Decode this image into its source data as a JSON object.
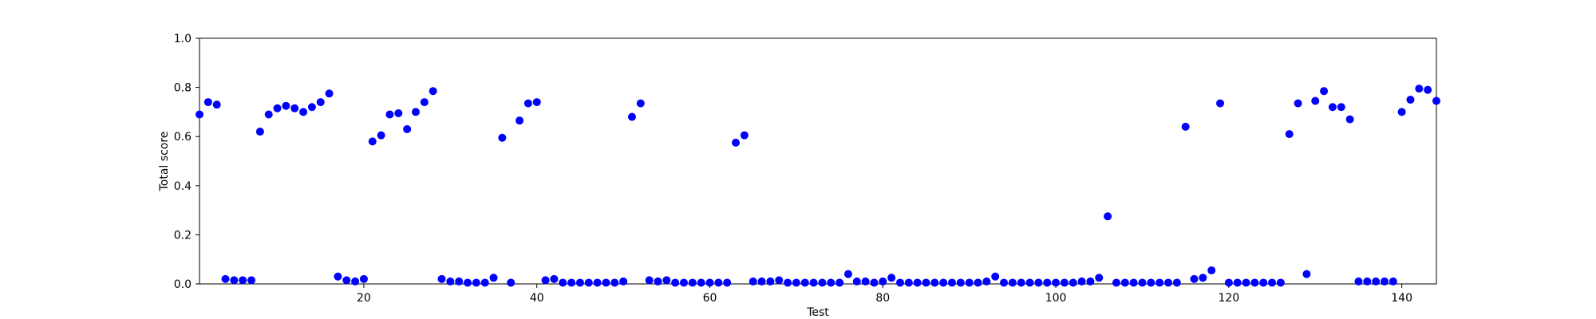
{
  "chart_data": {
    "type": "scatter",
    "title": "",
    "xlabel": "Test",
    "ylabel": "Total score",
    "xlim": [
      1,
      144
    ],
    "ylim": [
      0,
      1.0
    ],
    "xticks": [
      20,
      40,
      60,
      80,
      100,
      120,
      140
    ],
    "yticks": [
      0.0,
      0.2,
      0.4,
      0.6,
      0.8,
      1.0
    ],
    "xtick_labels": [
      "20",
      "40",
      "60",
      "80",
      "100",
      "120",
      "140"
    ],
    "ytick_labels": [
      "0.0",
      "0.2",
      "0.4",
      "0.6",
      "0.8",
      "1.0"
    ],
    "grid": false,
    "marker_color": "#0000ff",
    "series": [
      {
        "x": [
          1,
          2,
          3,
          4,
          5,
          6,
          7,
          8,
          9,
          10,
          11,
          12,
          13,
          14,
          15,
          16,
          17,
          18,
          19,
          20,
          21,
          22,
          23,
          24,
          25,
          26,
          27,
          28,
          29,
          30,
          31,
          32,
          33,
          34,
          35,
          36,
          37,
          38,
          39,
          40,
          41,
          42,
          43,
          44,
          45,
          46,
          47,
          48,
          49,
          50,
          51,
          52,
          53,
          54,
          55,
          56,
          57,
          58,
          59,
          60,
          61,
          62,
          63,
          64,
          65,
          66,
          67,
          68,
          69,
          70,
          71,
          72,
          73,
          74,
          75,
          76,
          77,
          78,
          79,
          80,
          81,
          82,
          83,
          84,
          85,
          86,
          87,
          88,
          89,
          90,
          91,
          92,
          93,
          94,
          95,
          96,
          97,
          98,
          99,
          100,
          101,
          102,
          103,
          104,
          105,
          106,
          107,
          108,
          109,
          110,
          111,
          112,
          113,
          114,
          115,
          116,
          117,
          118,
          119,
          120,
          121,
          122,
          123,
          124,
          125,
          126,
          127,
          128,
          129,
          130,
          131,
          132,
          133,
          134,
          135,
          136,
          137,
          138,
          139,
          140,
          141,
          142,
          143,
          144
        ],
        "y": [
          0.69,
          0.74,
          0.73,
          0.02,
          0.015,
          0.015,
          0.015,
          0.62,
          0.69,
          0.715,
          0.725,
          0.715,
          0.7,
          0.72,
          0.74,
          0.775,
          0.03,
          0.015,
          0.01,
          0.02,
          0.58,
          0.605,
          0.69,
          0.695,
          0.63,
          0.7,
          0.74,
          0.785,
          0.02,
          0.01,
          0.01,
          0.005,
          0.005,
          0.005,
          0.025,
          0.595,
          0.005,
          0.665,
          0.735,
          0.74,
          0.015,
          0.02,
          0.005,
          0.005,
          0.005,
          0.005,
          0.005,
          0.005,
          0.005,
          0.01,
          0.68,
          0.735,
          0.015,
          0.01,
          0.015,
          0.005,
          0.005,
          0.005,
          0.005,
          0.005,
          0.005,
          0.005,
          0.575,
          0.605,
          0.01,
          0.01,
          0.01,
          0.015,
          0.005,
          0.005,
          0.005,
          0.005,
          0.005,
          0.005,
          0.005,
          0.04,
          0.01,
          0.01,
          0.005,
          0.01,
          0.025,
          0.005,
          0.005,
          0.005,
          0.005,
          0.005,
          0.005,
          0.005,
          0.005,
          0.005,
          0.005,
          0.01,
          0.03,
          0.005,
          0.005,
          0.005,
          0.005,
          0.005,
          0.005,
          0.005,
          0.005,
          0.005,
          0.01,
          0.01,
          0.025,
          0.275,
          0.005,
          0.005,
          0.005,
          0.005,
          0.005,
          0.005,
          0.005,
          0.005,
          0.64,
          0.02,
          0.025,
          0.055,
          0.735,
          0.005,
          0.005,
          0.005,
          0.005,
          0.005,
          0.005,
          0.005,
          0.61,
          0.735,
          0.04,
          0.745,
          0.785,
          0.72,
          0.72,
          0.67,
          0.01,
          0.01,
          0.01,
          0.01,
          0.01,
          0.7,
          0.75,
          0.795,
          0.79,
          0.745
        ]
      }
    ]
  }
}
